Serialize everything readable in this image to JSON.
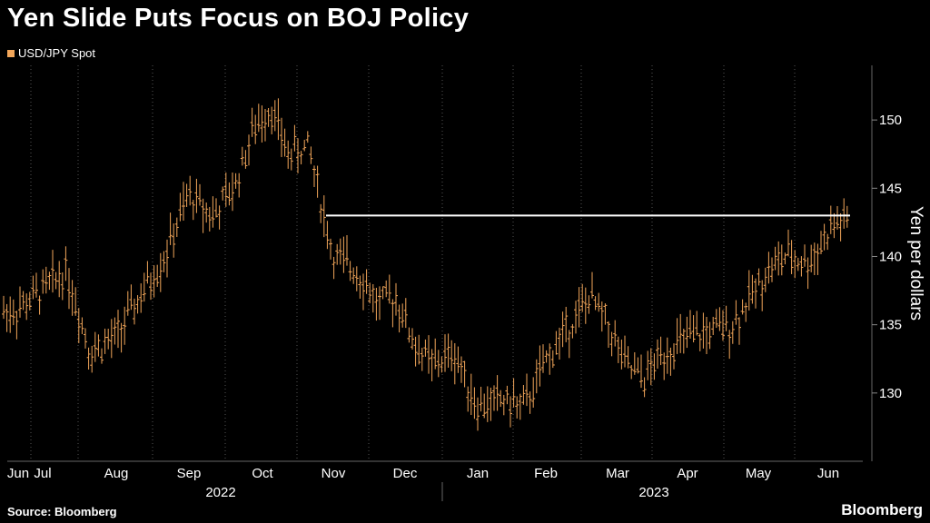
{
  "title": "Yen Slide Puts Focus on BOJ Policy",
  "legend": {
    "label": "USD/JPY Spot",
    "color": "#f2a65a"
  },
  "source": "Source: Bloomberg",
  "brand": "Bloomberg",
  "colors": {
    "background": "#000000",
    "bars": "#f2a65a",
    "grid": "#555555",
    "reference_line": "#ffffff"
  },
  "chart_data": {
    "type": "ohlc",
    "ylabel": "Yen per dollars",
    "ylim": [
      125,
      154
    ],
    "yticks": [
      130,
      135,
      140,
      145,
      150
    ],
    "grid": "vertical",
    "legend_position": "top-left",
    "x_months": [
      "Jun",
      "Jul",
      "Aug",
      "Sep",
      "Oct",
      "Nov",
      "Dec",
      "Jan",
      "Feb",
      "Mar",
      "Apr",
      "May",
      "Jun"
    ],
    "x_years": [
      "2022",
      "2023"
    ],
    "reference_line": {
      "value": 143,
      "start": "Nov",
      "end": "Jun"
    },
    "series": [
      {
        "name": "USD/JPY Spot",
        "trend": [
          [
            "Jun",
            136
          ],
          [
            "Jul",
            137.5
          ],
          [
            "Jul",
            139
          ],
          [
            "Aug",
            133
          ],
          [
            "Aug",
            134
          ],
          [
            "Aug",
            137
          ],
          [
            "Sep",
            140
          ],
          [
            "Sep",
            144.5
          ],
          [
            "Sep",
            143
          ],
          [
            "Oct",
            145
          ],
          [
            "Oct",
            149
          ],
          [
            "Oct",
            151
          ],
          [
            "Oct",
            147.5
          ],
          [
            "Nov",
            148
          ],
          [
            "Nov",
            140
          ],
          [
            "Nov",
            139
          ],
          [
            "Dec",
            136.5
          ],
          [
            "Dec",
            137
          ],
          [
            "Dec",
            133.5
          ],
          [
            "Dec",
            132
          ],
          [
            "Jan",
            133
          ],
          [
            "Jan",
            129
          ],
          [
            "Jan",
            129.5
          ],
          [
            "Feb",
            129
          ],
          [
            "Feb",
            132.5
          ],
          [
            "Feb",
            135
          ],
          [
            "Mar",
            137
          ],
          [
            "Mar",
            135
          ],
          [
            "Mar",
            132
          ],
          [
            "Mar",
            131
          ],
          [
            "Apr",
            133
          ],
          [
            "Apr",
            134
          ],
          [
            "Apr",
            134.5
          ],
          [
            "May",
            135
          ],
          [
            "May",
            137
          ],
          [
            "May",
            139
          ],
          [
            "May",
            140
          ],
          [
            "Jun",
            139.5
          ],
          [
            "Jun",
            142.5
          ]
        ]
      }
    ]
  }
}
